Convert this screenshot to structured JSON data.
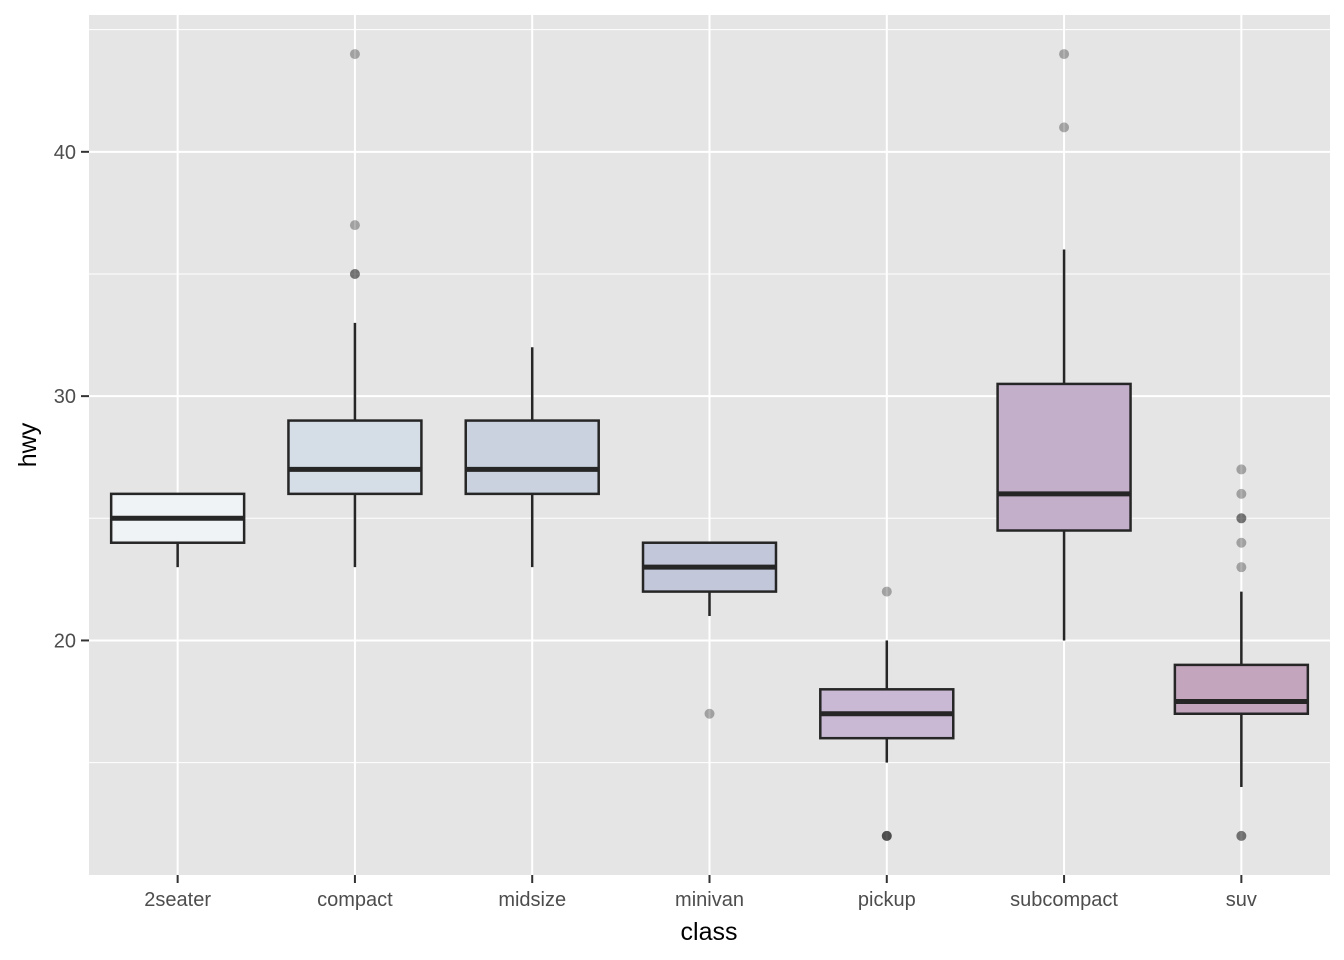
{
  "chart_data": {
    "type": "boxplot",
    "xlabel": "class",
    "ylabel": "hwy",
    "ylim": [
      10.4,
      45.6
    ],
    "yticks": [
      20,
      30,
      40
    ],
    "grid": true,
    "categories": [
      "2seater",
      "compact",
      "midsize",
      "minivan",
      "pickup",
      "subcompact",
      "suv"
    ],
    "boxes": [
      {
        "category": "2seater",
        "lower_whisker": 23,
        "q1": 24,
        "median": 25,
        "q3": 26,
        "upper_whisker": 26,
        "outliers": [],
        "fill": "#f0f3f5"
      },
      {
        "category": "compact",
        "lower_whisker": 23,
        "q1": 26,
        "median": 27,
        "q3": 29,
        "upper_whisker": 33,
        "outliers": [
          35,
          35,
          37,
          44
        ],
        "fill": "#d5dde7"
      },
      {
        "category": "midsize",
        "lower_whisker": 23,
        "q1": 26,
        "median": 27,
        "q3": 29,
        "upper_whisker": 32,
        "outliers": [],
        "fill": "#c9d2de"
      },
      {
        "category": "minivan",
        "lower_whisker": 21,
        "q1": 22,
        "median": 23,
        "q3": 24,
        "upper_whisker": 24,
        "outliers": [
          17
        ],
        "fill": "#c3c7da"
      },
      {
        "category": "pickup",
        "lower_whisker": 15,
        "q1": 16,
        "median": 17,
        "q3": 18,
        "upper_whisker": 20,
        "outliers": [
          12,
          12,
          12,
          22
        ],
        "fill": "#c9b9d4"
      },
      {
        "category": "subcompact",
        "lower_whisker": 20,
        "q1": 24.5,
        "median": 26,
        "q3": 30.5,
        "upper_whisker": 36,
        "outliers": [
          41,
          44
        ],
        "fill": "#c4afcb"
      },
      {
        "category": "suv",
        "lower_whisker": 14,
        "q1": 17,
        "median": 17.5,
        "q3": 19,
        "upper_whisker": 22,
        "outliers": [
          12,
          12,
          23,
          24,
          25,
          25,
          26,
          27
        ],
        "fill": "#c3a6be"
      }
    ],
    "colors": {
      "panel_background": "#e5e5e5",
      "grid": "#ffffff",
      "box_outline": "#262626",
      "outlier": "#000000"
    }
  }
}
